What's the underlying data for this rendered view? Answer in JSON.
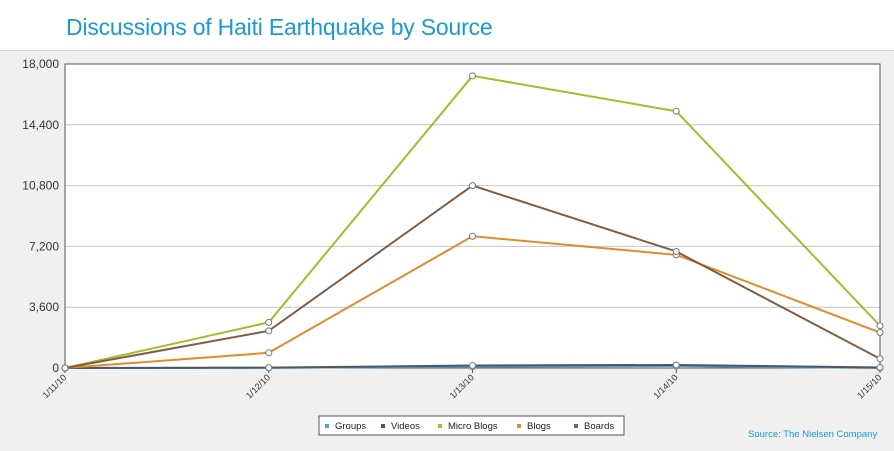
{
  "title": "Discussions of Haiti Earthquake by Source",
  "source": "Source: The Nielsen Company",
  "chart_data": {
    "type": "line",
    "title": "Discussions of Haiti Earthquake by Source",
    "xlabel": "",
    "ylabel": "",
    "categories": [
      "1/11/10",
      "1/12/10",
      "1/13/10",
      "1/14/10",
      "1/15/10"
    ],
    "ylim": [
      0,
      18000
    ],
    "yticks": [
      "0",
      "3,600",
      "7,200",
      "10,800",
      "14,400",
      "18,000"
    ],
    "grid": true,
    "legend_position": "bottom-center",
    "series": [
      {
        "name": "Groups",
        "color": "#5aa0cf",
        "values": [
          0,
          10,
          80,
          120,
          0
        ]
      },
      {
        "name": "Videos",
        "color": "#4d5764",
        "values": [
          0,
          20,
          150,
          180,
          30
        ]
      },
      {
        "name": "Micro Blogs",
        "color": "#a6ba2a",
        "values": [
          0,
          2700,
          17300,
          15200,
          2500
        ]
      },
      {
        "name": "Blogs",
        "color": "#e08b2c",
        "values": [
          0,
          900,
          7800,
          6700,
          2100
        ]
      },
      {
        "name": "Boards",
        "color": "#7e5f46",
        "values": [
          0,
          2200,
          10800,
          6900,
          550
        ]
      }
    ]
  }
}
